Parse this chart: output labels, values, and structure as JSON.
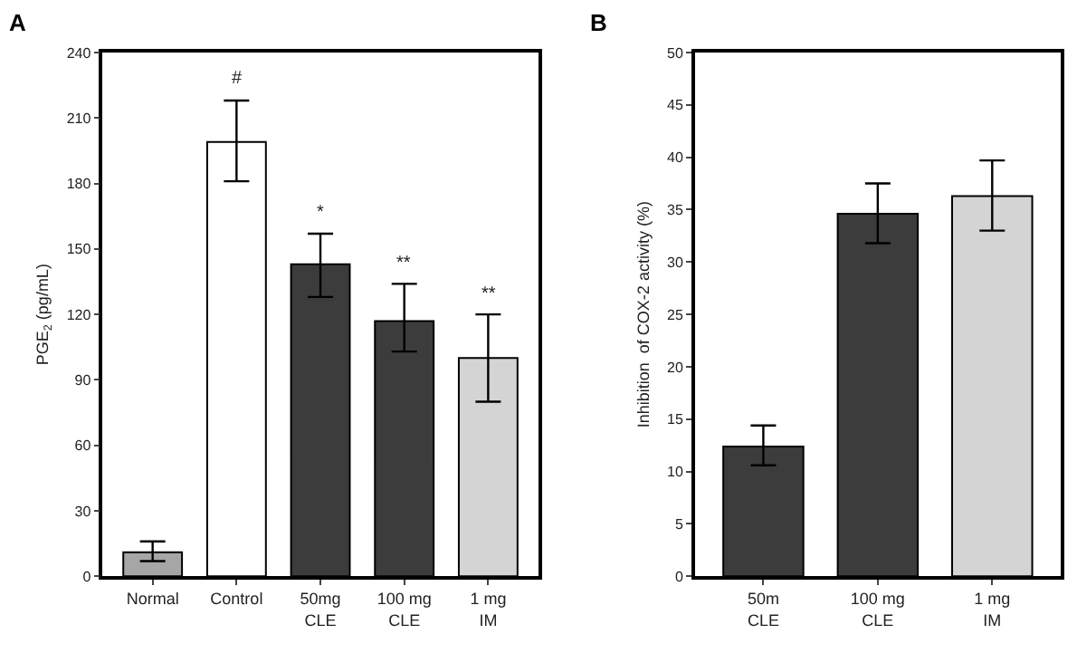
{
  "chart_data": [
    {
      "type": "bar",
      "title": "A",
      "ylabel": "PGE$_{2}$ (pg/mL)",
      "categories": [
        "Normal",
        "Control",
        "50mg\nCLE",
        "100 mg\nCLE",
        "1 mg\nIM"
      ],
      "values": [
        11,
        199,
        143,
        117,
        100
      ],
      "colors": [
        "#a6a6a6",
        "#ffffff",
        "#3c3c3c",
        "#3c3c3c",
        "#d4d4d4"
      ],
      "errors": [
        [
          7,
          16
        ],
        [
          181,
          218
        ],
        [
          128,
          157
        ],
        [
          103,
          134
        ],
        [
          80,
          120
        ]
      ],
      "ylim": [
        0,
        240
      ],
      "yticks": [
        0,
        30,
        60,
        90,
        120,
        150,
        180,
        210,
        240
      ],
      "annotations": [
        {
          "text": "#",
          "x": "Control",
          "y": 218
        },
        {
          "text": "*",
          "x": "50mg\nCLE",
          "y": 157
        },
        {
          "text": "**",
          "x": "100 mg\nCLE",
          "y": 134
        },
        {
          "text": "**",
          "x": "1 mg\nIM",
          "y": 120
        }
      ]
    },
    {
      "type": "bar",
      "title": "B",
      "ylabel": "Inhibition  of COX-2 activity (%)",
      "categories": [
        "50m\nCLE",
        "100 mg\nCLE",
        "1 mg\nIM"
      ],
      "values": [
        12.4,
        34.6,
        36.3
      ],
      "colors": [
        "#3c3c3c",
        "#3c3c3c",
        "#d4d4d4"
      ],
      "errors": [
        [
          10.6,
          14.4
        ],
        [
          31.8,
          37.5
        ],
        [
          33,
          39.7
        ]
      ],
      "ylim": [
        0,
        50
      ],
      "yticks": [
        0,
        5,
        10,
        15,
        20,
        25,
        30,
        35,
        40,
        45,
        50
      ]
    }
  ]
}
